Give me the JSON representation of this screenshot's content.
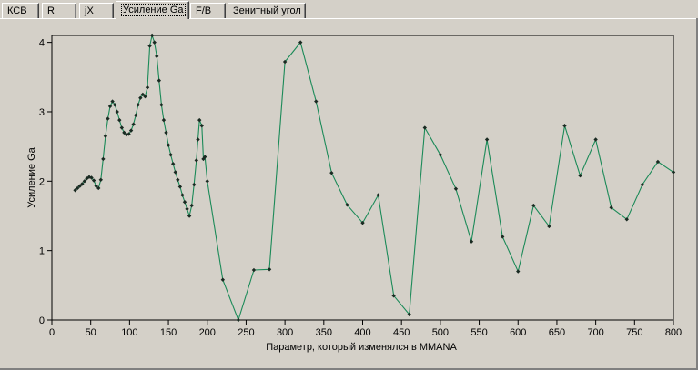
{
  "tabs": [
    {
      "label": "КСВ",
      "active": false
    },
    {
      "label": "R",
      "active": false
    },
    {
      "label": "jX",
      "active": false
    },
    {
      "label": "Усиление Ga",
      "active": true
    },
    {
      "label": "F/B",
      "active": false
    },
    {
      "label": "Зенитный угол",
      "active": false
    }
  ],
  "colors": {
    "line": "#1b8a58",
    "marker": "#1a2a22",
    "plot_bg": "#d4d0c8"
  },
  "chart_data": {
    "type": "line",
    "xlabel": "Параметр, который изменялся в MMANA",
    "ylabel": "Усиление Ga",
    "xlim": [
      0,
      800
    ],
    "ylim": [
      0,
      4.1
    ],
    "x_ticks": [
      0,
      50,
      100,
      150,
      200,
      250,
      300,
      350,
      400,
      450,
      500,
      550,
      600,
      650,
      700,
      750,
      800
    ],
    "y_ticks": [
      0,
      1,
      2,
      3,
      4
    ],
    "grid": false,
    "series": [
      {
        "x": [
          30,
          33,
          36,
          39,
          42,
          45,
          48,
          51,
          54,
          57,
          60,
          63,
          66,
          69,
          72,
          75,
          78,
          81,
          84,
          87,
          90,
          93,
          96,
          99,
          102,
          105,
          108,
          111,
          114,
          117,
          120,
          123,
          126,
          129,
          132,
          135,
          138,
          141,
          144,
          147,
          150,
          153,
          156,
          159,
          162,
          165,
          168,
          171,
          174,
          177,
          180,
          183,
          186,
          188,
          190,
          193,
          195,
          197,
          200,
          220,
          240,
          260,
          280,
          300,
          320,
          340,
          360,
          380,
          400,
          420,
          440,
          460,
          480,
          500,
          520,
          540,
          560,
          580,
          600,
          620,
          640,
          660,
          680,
          700,
          720,
          740,
          760,
          780,
          800
        ],
        "y": [
          1.87,
          1.9,
          1.93,
          1.96,
          2.0,
          2.04,
          2.06,
          2.05,
          2.01,
          1.93,
          1.9,
          2.02,
          2.32,
          2.65,
          2.9,
          3.08,
          3.15,
          3.1,
          3.0,
          2.88,
          2.77,
          2.7,
          2.67,
          2.68,
          2.73,
          2.82,
          2.95,
          3.1,
          3.2,
          3.25,
          3.22,
          3.35,
          3.95,
          4.1,
          4.0,
          3.8,
          3.45,
          3.1,
          2.88,
          2.7,
          2.52,
          2.38,
          2.25,
          2.13,
          2.02,
          1.92,
          1.8,
          1.7,
          1.6,
          1.5,
          1.65,
          1.95,
          2.3,
          2.6,
          2.88,
          2.8,
          2.32,
          2.35,
          2.0,
          0.58,
          0.0,
          0.72,
          0.73,
          3.72,
          4.0,
          3.15,
          2.12,
          1.66,
          1.4,
          1.8,
          0.35,
          0.08,
          2.77,
          2.38,
          1.89,
          1.13,
          2.6,
          1.2,
          0.7,
          1.65,
          1.35,
          2.8,
          2.08,
          2.6,
          1.62,
          1.45,
          1.95,
          2.28,
          2.13
        ]
      }
    ]
  }
}
